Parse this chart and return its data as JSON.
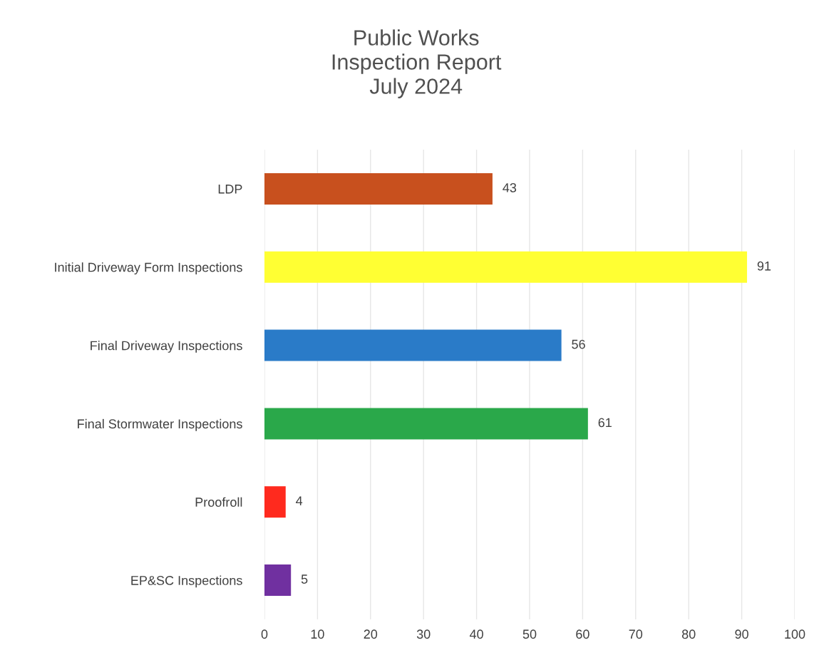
{
  "chart_data": {
    "type": "bar",
    "orientation": "horizontal",
    "title": "Public Works\nInspection Report\nJuly 2024",
    "categories": [
      "LDP",
      "Initial Driveway Form Inspections",
      "Final Driveway Inspections",
      "Final Stormwater Inspections",
      "Proofroll",
      "EP&SC Inspections"
    ],
    "values": [
      43,
      91,
      56,
      61,
      4,
      5
    ],
    "colors": [
      "#c8501e",
      "#ffff33",
      "#2a7bc8",
      "#2aa84a",
      "#ff2a1e",
      "#7030a0"
    ],
    "xlim": [
      0,
      100
    ],
    "xticks": [
      0,
      10,
      20,
      30,
      40,
      50,
      60,
      70,
      80,
      90,
      100
    ],
    "grid": "x",
    "data_labels": true
  }
}
